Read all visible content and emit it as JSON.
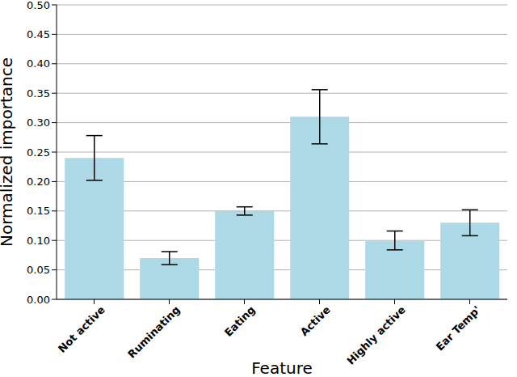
{
  "chart_data": {
    "type": "bar",
    "x_label": "Feature",
    "y_label": "Normalized importance",
    "categories": [
      "Not active",
      "Ruminating",
      "Eating",
      "Active",
      "Highly active",
      "Ear Temp'"
    ],
    "values": [
      0.24,
      0.07,
      0.15,
      0.31,
      0.1,
      0.13
    ],
    "errors": [
      0.038,
      0.011,
      0.007,
      0.046,
      0.016,
      0.022
    ],
    "color": "#add8e6",
    "ylim": [
      0,
      0.5
    ],
    "yticks": [
      {
        "value": 0,
        "label": "0.00"
      },
      0.05,
      {
        "value": 0.1,
        "label": "0.10"
      },
      0.15,
      {
        "value": 0.2,
        "label": "0.20"
      },
      0.25,
      {
        "value": 0.3,
        "label": "0.30"
      },
      0.35,
      {
        "value": 0.4,
        "label": "0.40"
      },
      0.45,
      {
        "value": 0.5,
        "label": "0.50"
      }
    ],
    "grid": true
  }
}
